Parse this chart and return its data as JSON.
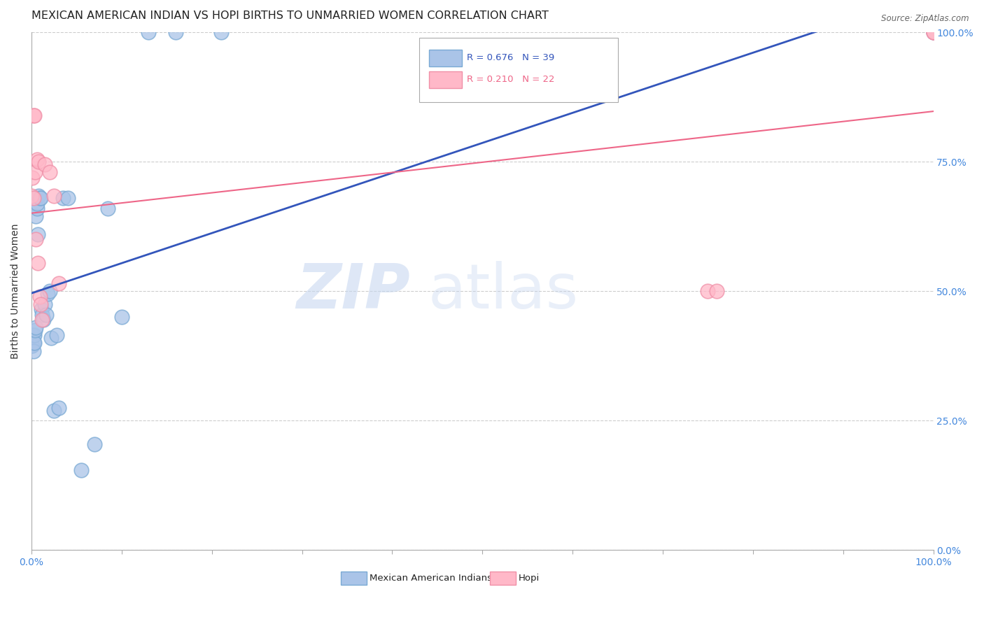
{
  "title": "MEXICAN AMERICAN INDIAN VS HOPI BIRTHS TO UNMARRIED WOMEN CORRELATION CHART",
  "source": "Source: ZipAtlas.com",
  "ylabel": "Births to Unmarried Women",
  "legend_blue_label": "Mexican American Indians",
  "legend_pink_label": "Hopi",
  "r_blue": "R = 0.676",
  "n_blue": "N = 39",
  "r_pink": "R = 0.210",
  "n_pink": "N = 22",
  "blue_face_color": "#aac4e8",
  "blue_edge_color": "#7aaad4",
  "pink_face_color": "#ffb8c8",
  "pink_edge_color": "#f090a8",
  "blue_line_color": "#3355bb",
  "pink_line_color": "#ee6688",
  "watermark_zip": "ZIP",
  "watermark_atlas": "atlas",
  "grid_color": "#cccccc",
  "background_color": "#ffffff",
  "title_fontsize": 11.5,
  "axis_label_fontsize": 10,
  "tick_fontsize": 10,
  "right_tick_color": "#4488dd",
  "bottom_tick_color": "#4488dd",
  "blue_x": [
    0.0,
    0.001,
    0.001,
    0.002,
    0.002,
    0.002,
    0.003,
    0.003,
    0.004,
    0.005,
    0.005,
    0.006,
    0.006,
    0.007,
    0.008,
    0.009,
    0.01,
    0.011,
    0.012,
    0.013,
    0.015,
    0.016,
    0.018,
    0.02,
    0.022,
    0.025,
    0.028,
    0.03,
    0.035,
    0.04,
    0.055,
    0.07,
    0.085,
    0.1,
    0.13,
    0.16,
    0.21,
    1.0,
    1.0
  ],
  "blue_y": [
    0.395,
    0.415,
    0.395,
    0.415,
    0.4,
    0.385,
    0.415,
    0.4,
    0.425,
    0.645,
    0.43,
    0.66,
    0.67,
    0.61,
    0.685,
    0.68,
    0.68,
    0.465,
    0.455,
    0.445,
    0.475,
    0.455,
    0.495,
    0.5,
    0.41,
    0.27,
    0.415,
    0.275,
    0.68,
    0.68,
    0.155,
    0.205,
    0.66,
    0.45,
    1.0,
    1.0,
    1.0,
    1.0,
    1.0
  ],
  "pink_x": [
    0.0,
    0.001,
    0.002,
    0.002,
    0.003,
    0.004,
    0.005,
    0.006,
    0.007,
    0.008,
    0.009,
    0.01,
    0.012,
    0.015,
    0.02,
    0.025,
    0.03,
    0.75,
    0.76,
    1.0,
    1.0,
    1.0
  ],
  "pink_y": [
    0.685,
    0.72,
    0.84,
    0.68,
    0.84,
    0.73,
    0.6,
    0.755,
    0.555,
    0.75,
    0.49,
    0.475,
    0.445,
    0.745,
    0.73,
    0.685,
    0.515,
    0.5,
    0.5,
    1.0,
    1.0,
    1.0
  ],
  "xlim": [
    0.0,
    1.0
  ],
  "ylim": [
    0.0,
    1.0
  ]
}
